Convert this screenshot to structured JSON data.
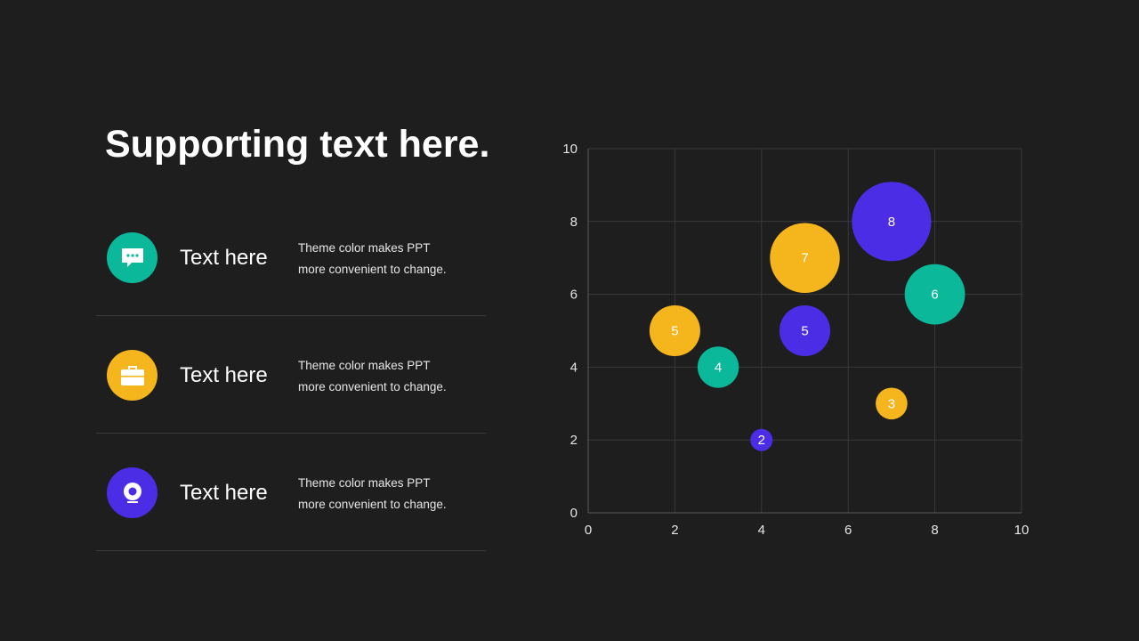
{
  "slide": {
    "title": "Supporting text here."
  },
  "features": [
    {
      "icon": "chat-icon",
      "color": "#0bb89a",
      "label": "Text here",
      "desc_line1": "Theme color makes PPT",
      "desc_line2": "more convenient to change."
    },
    {
      "icon": "briefcase-icon",
      "color": "#f5b51c",
      "label": "Text here",
      "desc_line1": "Theme color makes PPT",
      "desc_line2": "more convenient to change."
    },
    {
      "icon": "webcam-icon",
      "color": "#4a2de5",
      "label": "Text here",
      "desc_line1": "Theme color makes PPT",
      "desc_line2": "more convenient to change."
    }
  ],
  "chart_data": {
    "type": "scatter",
    "variant": "bubble",
    "xlim": [
      0,
      10
    ],
    "ylim": [
      0,
      10
    ],
    "xticks": [
      0,
      2,
      4,
      6,
      8,
      10
    ],
    "yticks": [
      0,
      2,
      4,
      6,
      8,
      10
    ],
    "grid": true,
    "legend": "none",
    "colors": {
      "teal": "#0bb89a",
      "yellow": "#f5b51c",
      "purple": "#4a2de5"
    },
    "points": [
      {
        "x": 2,
        "y": 5,
        "size": 5,
        "label": "5",
        "color": "#f5b51c"
      },
      {
        "x": 3,
        "y": 4,
        "size": 4,
        "label": "4",
        "color": "#0bb89a"
      },
      {
        "x": 4,
        "y": 2,
        "size": 2,
        "label": "2",
        "color": "#4a2de5"
      },
      {
        "x": 5,
        "y": 7,
        "size": 7,
        "label": "7",
        "color": "#f5b51c"
      },
      {
        "x": 5,
        "y": 5,
        "size": 5,
        "label": "5",
        "color": "#4a2de5"
      },
      {
        "x": 7,
        "y": 8,
        "size": 8,
        "label": "8",
        "color": "#4a2de5"
      },
      {
        "x": 8,
        "y": 6,
        "size": 6,
        "label": "6",
        "color": "#0bb89a"
      },
      {
        "x": 7,
        "y": 3,
        "size": 3,
        "label": "3",
        "color": "#f5b51c"
      }
    ]
  }
}
